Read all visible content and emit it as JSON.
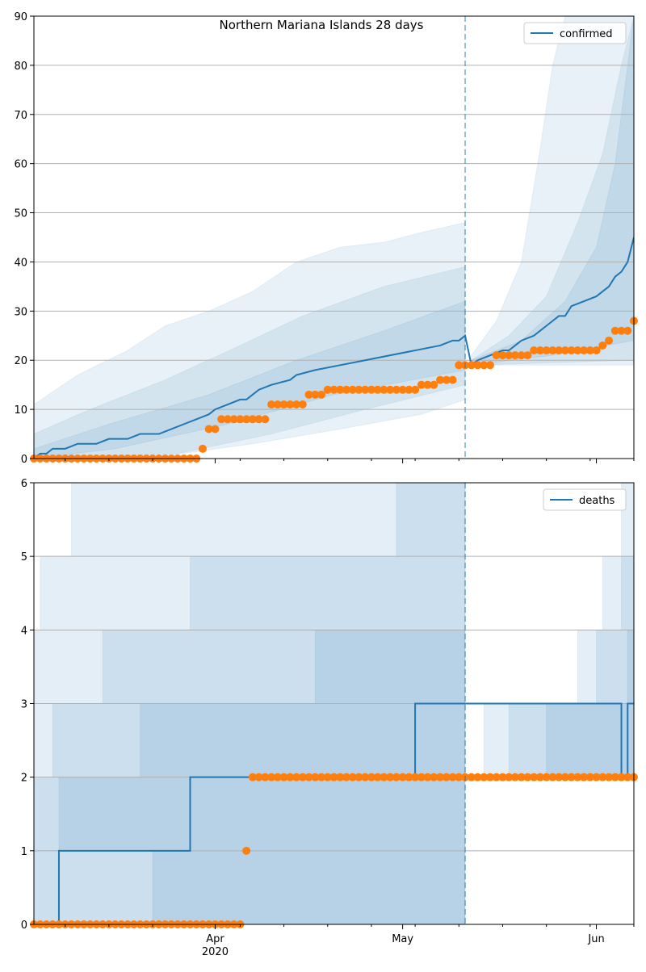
{
  "chart_data": [
    {
      "type": "line",
      "title": "Northern Mariana Islands 28 days",
      "xlabel": "",
      "ylabel": "",
      "ylim": [
        0,
        90
      ],
      "xlim": [
        "2020-03-03",
        "2020-06-07"
      ],
      "yticks": [
        0,
        10,
        20,
        30,
        40,
        50,
        60,
        70,
        80,
        90
      ],
      "x_date_ticks": [
        {
          "date": "2020-04-01",
          "label": "Apr",
          "year_label": "2020"
        },
        {
          "date": "2020-05-01",
          "label": "May",
          "year_label": ""
        },
        {
          "date": "2020-06-01",
          "label": "Jun",
          "year_label": ""
        }
      ],
      "x_minor_ticks": [
        "2020-03-08",
        "2020-03-15",
        "2020-03-22",
        "2020-04-05",
        "2020-04-12",
        "2020-04-19",
        "2020-04-26",
        "2020-05-03",
        "2020-05-10",
        "2020-05-17",
        "2020-05-24",
        "2020-05-31",
        "2020-06-07"
      ],
      "grid": {
        "y": true,
        "x": false
      },
      "legend": {
        "placement": "top-right",
        "entries": [
          "confirmed"
        ]
      },
      "forecast_start": "2020-05-11",
      "series": [
        {
          "name": "confirmed",
          "kind": "line",
          "color": "#1f77b4",
          "x": [
            "2020-03-03",
            "2020-03-04",
            "2020-03-05",
            "2020-03-06",
            "2020-03-08",
            "2020-03-10",
            "2020-03-13",
            "2020-03-15",
            "2020-03-18",
            "2020-03-20",
            "2020-03-23",
            "2020-03-25",
            "2020-03-27",
            "2020-03-29",
            "2020-03-31",
            "2020-04-01",
            "2020-04-03",
            "2020-04-05",
            "2020-04-06",
            "2020-04-07",
            "2020-04-08",
            "2020-04-10",
            "2020-04-13",
            "2020-04-14",
            "2020-04-17",
            "2020-04-21",
            "2020-04-25",
            "2020-04-29",
            "2020-05-03",
            "2020-05-07",
            "2020-05-09",
            "2020-05-10",
            "2020-05-11",
            "2020-05-12",
            "2020-05-13",
            "2020-05-15",
            "2020-05-17",
            "2020-05-18",
            "2020-05-19",
            "2020-05-20",
            "2020-05-22",
            "2020-05-23",
            "2020-05-24",
            "2020-05-25",
            "2020-05-26",
            "2020-05-27",
            "2020-05-28",
            "2020-05-30",
            "2020-06-01",
            "2020-06-03",
            "2020-06-04",
            "2020-06-05",
            "2020-06-06",
            "2020-06-07"
          ],
          "y": [
            0,
            1,
            1,
            2,
            2,
            3,
            3,
            4,
            4,
            5,
            5,
            6,
            7,
            8,
            9,
            10,
            11,
            12,
            12,
            13,
            14,
            15,
            16,
            17,
            18,
            19,
            20,
            21,
            22,
            23,
            24,
            24,
            25,
            19,
            20,
            21,
            22,
            22,
            23,
            24,
            25,
            26,
            27,
            28,
            29,
            29,
            31,
            32,
            33,
            35,
            37,
            38,
            40,
            45
          ]
        },
        {
          "name": "observed",
          "kind": "points",
          "color": "#ff7f0e",
          "x": [
            "2020-03-03",
            "2020-03-30",
            "2020-03-31",
            "2020-04-02",
            "2020-04-03",
            "2020-04-04",
            "2020-04-10",
            "2020-04-14",
            "2020-04-15",
            "2020-04-16",
            "2020-04-17",
            "2020-04-18",
            "2020-04-19",
            "2020-04-20",
            "2020-04-21",
            "2020-04-22",
            "2020-04-23",
            "2020-04-24",
            "2020-04-25",
            "2020-04-26",
            "2020-04-27",
            "2020-04-28",
            "2020-04-29",
            "2020-04-30",
            "2020-05-01",
            "2020-05-02",
            "2020-05-03",
            "2020-05-04",
            "2020-05-05",
            "2020-05-06",
            "2020-05-07",
            "2020-05-08",
            "2020-05-09",
            "2020-05-10",
            "2020-05-11",
            "2020-05-12",
            "2020-05-13",
            "2020-05-14",
            "2020-05-15",
            "2020-05-16",
            "2020-05-17",
            "2020-05-18",
            "2020-05-19",
            "2020-05-20",
            "2020-05-21",
            "2020-05-22",
            "2020-05-23",
            "2020-05-24",
            "2020-05-25",
            "2020-05-26",
            "2020-05-27",
            "2020-05-28",
            "2020-05-29",
            "2020-05-30",
            "2020-05-31",
            "2020-06-01",
            "2020-06-02",
            "2020-06-03",
            "2020-06-04",
            "2020-06-05",
            "2020-06-06",
            "2020-06-07"
          ],
          "y": [
            0,
            2,
            6,
            8,
            8,
            8,
            11,
            11,
            11,
            13,
            13,
            13,
            14,
            14,
            14,
            14,
            14,
            14,
            14,
            14,
            14,
            14,
            14,
            14,
            14,
            14,
            14,
            15,
            15,
            15,
            16,
            16,
            16,
            19,
            19,
            19,
            19,
            19,
            19,
            21,
            21,
            21,
            21,
            21,
            21,
            22,
            22,
            22,
            22,
            22,
            22,
            22,
            22,
            22,
            22,
            22,
            23,
            24,
            26,
            26,
            26,
            28
          ]
        }
      ],
      "bands": [
        {
          "upper_x": [
            "2020-03-03",
            "2020-03-10",
            "2020-03-18",
            "2020-03-24",
            "2020-03-31",
            "2020-04-07",
            "2020-04-14",
            "2020-04-21",
            "2020-04-28",
            "2020-05-04",
            "2020-05-11"
          ],
          "upper_y": [
            11,
            17,
            22,
            27,
            30,
            34,
            40,
            43,
            44,
            46,
            48
          ],
          "lower_x": [
            "2020-03-03",
            "2020-03-21",
            "2020-04-07",
            "2020-04-21",
            "2020-05-04",
            "2020-05-11"
          ],
          "lower_y": [
            0,
            0,
            3,
            6,
            9,
            12
          ]
        },
        {
          "upper_x": [
            "2020-03-03",
            "2020-03-12",
            "2020-03-24",
            "2020-04-05",
            "2020-04-15",
            "2020-04-28",
            "2020-05-11"
          ],
          "upper_y": [
            5,
            10,
            16,
            23,
            29,
            35,
            39
          ],
          "lower_x": [
            "2020-03-03",
            "2020-03-26",
            "2020-04-10",
            "2020-04-25",
            "2020-05-11"
          ],
          "lower_y": [
            0,
            1,
            5,
            10,
            15
          ]
        },
        {
          "upper_x": [
            "2020-03-03",
            "2020-03-15",
            "2020-03-31",
            "2020-04-14",
            "2020-04-28",
            "2020-05-11"
          ],
          "upper_y": [
            2,
            7,
            13,
            20,
            26,
            32
          ],
          "lower_x": [
            "2020-03-03",
            "2020-03-16",
            "2020-04-03",
            "2020-04-20",
            "2020-05-11"
          ],
          "lower_y": [
            0,
            2,
            7,
            13,
            18
          ]
        },
        {
          "upper_x": [
            "2020-05-12",
            "2020-05-16",
            "2020-05-20",
            "2020-05-23",
            "2020-05-25",
            "2020-05-27",
            "2020-05-29",
            "2020-06-07"
          ],
          "upper_y": [
            21,
            28,
            40,
            63,
            80,
            90,
            90,
            90
          ],
          "lower_x": [
            "2020-05-12",
            "2020-06-07"
          ],
          "lower_y": [
            19,
            19
          ]
        },
        {
          "upper_x": [
            "2020-05-12",
            "2020-05-18",
            "2020-05-24",
            "2020-05-29",
            "2020-06-02",
            "2020-06-05",
            "2020-06-07"
          ],
          "upper_y": [
            20,
            25,
            33,
            48,
            62,
            80,
            90
          ],
          "lower_x": [
            "2020-05-12",
            "2020-06-07"
          ],
          "lower_y": [
            19,
            20
          ]
        },
        {
          "upper_x": [
            "2020-05-12",
            "2020-05-20",
            "2020-05-27",
            "2020-06-01",
            "2020-06-04",
            "2020-06-07"
          ],
          "upper_y": [
            20,
            24,
            32,
            43,
            60,
            90
          ],
          "lower_x": [
            "2020-05-12",
            "2020-05-25",
            "2020-06-07"
          ],
          "lower_y": [
            19,
            21,
            24
          ]
        }
      ]
    },
    {
      "type": "line",
      "title": "",
      "xlabel": "",
      "ylabel": "",
      "ylim": [
        0,
        6
      ],
      "xlim": [
        "2020-03-03",
        "2020-06-07"
      ],
      "yticks": [
        0,
        1,
        2,
        3,
        4,
        5,
        6
      ],
      "x_date_ticks": [
        {
          "date": "2020-04-01",
          "label": "Apr",
          "year_label": "2020"
        },
        {
          "date": "2020-05-01",
          "label": "May",
          "year_label": ""
        },
        {
          "date": "2020-06-01",
          "label": "Jun",
          "year_label": ""
        }
      ],
      "x_minor_ticks": [
        "2020-03-08",
        "2020-03-15",
        "2020-03-22",
        "2020-04-05",
        "2020-04-12",
        "2020-04-19",
        "2020-04-26",
        "2020-05-03",
        "2020-05-10",
        "2020-05-17",
        "2020-05-24",
        "2020-05-31",
        "2020-06-07"
      ],
      "grid": {
        "y": true,
        "x": false
      },
      "legend": {
        "placement": "top-right",
        "entries": [
          "deaths"
        ]
      },
      "forecast_start": "2020-05-11",
      "series": [
        {
          "name": "deaths",
          "kind": "step",
          "color": "#1f77b4",
          "x": [
            "2020-03-03",
            "2020-03-06",
            "2020-03-07",
            "2020-03-27",
            "2020-03-28",
            "2020-05-02",
            "2020-05-03",
            "2020-05-11",
            "2020-06-05",
            "2020-06-06",
            "2020-06-07"
          ],
          "y": [
            0,
            0,
            1,
            1,
            2,
            2,
            3,
            3,
            2,
            3,
            3
          ]
        },
        {
          "name": "observed",
          "kind": "points",
          "color": "#ff7f0e",
          "x": [
            "2020-03-03",
            "2020-03-31",
            "2020-04-06",
            "2020-04-07",
            "2020-06-07"
          ],
          "y": [
            0,
            0,
            1,
            2,
            2
          ],
          "daily_fill": true
        }
      ],
      "bands_pre": [
        {
          "steps": [
            [
              "2020-03-03",
              4
            ],
            [
              "2020-03-04",
              5
            ],
            [
              "2020-03-09",
              6
            ],
            [
              "2020-05-11",
              6
            ]
          ],
          "lower_steps": [
            [
              "2020-03-03",
              0
            ],
            [
              "2020-05-11",
              0
            ]
          ]
        },
        {
          "steps": [
            [
              "2020-03-03",
              2
            ],
            [
              "2020-03-06",
              3
            ],
            [
              "2020-03-14",
              4
            ],
            [
              "2020-03-28",
              5
            ],
            [
              "2020-04-30",
              6
            ],
            [
              "2020-05-11",
              6
            ]
          ],
          "lower_steps": [
            [
              "2020-03-03",
              0
            ],
            [
              "2020-05-11",
              0
            ]
          ]
        },
        {
          "steps": [
            [
              "2020-03-03",
              1
            ],
            [
              "2020-03-07",
              2
            ],
            [
              "2020-03-20",
              3
            ],
            [
              "2020-04-17",
              4
            ],
            [
              "2020-05-11",
              6
            ]
          ],
          "lower_steps": [
            [
              "2020-03-03",
              0
            ],
            [
              "2020-03-22",
              1
            ],
            [
              "2020-05-09",
              0
            ],
            [
              "2020-05-11",
              0
            ]
          ]
        }
      ],
      "bands_post": [
        {
          "steps": [
            [
              "2020-05-12",
              2
            ],
            [
              "2020-05-14",
              3
            ],
            [
              "2020-05-29",
              4
            ],
            [
              "2020-06-02",
              5
            ],
            [
              "2020-06-05",
              6
            ],
            [
              "2020-06-07",
              6
            ]
          ],
          "lower_steps": [
            [
              "2020-05-12",
              2
            ],
            [
              "2020-06-07",
              2
            ]
          ]
        },
        {
          "steps": [
            [
              "2020-05-13",
              2
            ],
            [
              "2020-05-18",
              3
            ],
            [
              "2020-06-01",
              4
            ],
            [
              "2020-06-05",
              5
            ],
            [
              "2020-06-07",
              6
            ]
          ],
          "lower_steps": [
            [
              "2020-05-13",
              2
            ],
            [
              "2020-06-07",
              2
            ]
          ]
        },
        {
          "steps": [
            [
              "2020-05-15",
              2
            ],
            [
              "2020-05-24",
              3
            ],
            [
              "2020-06-06",
              4
            ],
            [
              "2020-06-07",
              6
            ]
          ],
          "lower_steps": [
            [
              "2020-05-15",
              2
            ],
            [
              "2020-06-07",
              2
            ]
          ]
        }
      ]
    }
  ]
}
